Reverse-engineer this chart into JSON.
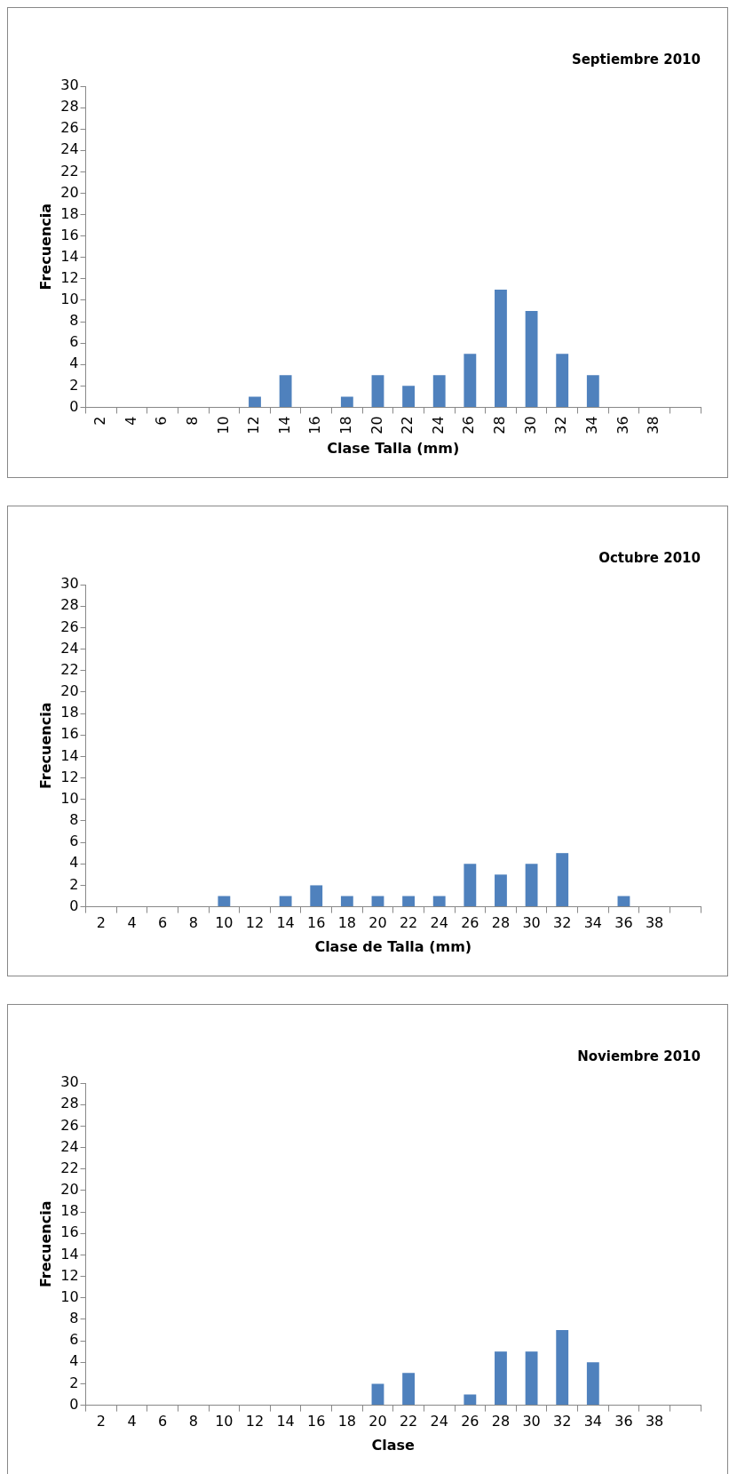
{
  "chart_data": [
    {
      "type": "bar",
      "title": "Septiembre 2010",
      "xlabel": "Clase Talla (mm)",
      "ylabel": "Frecuencia",
      "categories": [
        "2",
        "4",
        "6",
        "8",
        "10",
        "12",
        "14",
        "16",
        "18",
        "20",
        "22",
        "24",
        "26",
        "28",
        "30",
        "32",
        "34",
        "36",
        "38",
        null
      ],
      "values": [
        0,
        0,
        0,
        0,
        0,
        1,
        3,
        0,
        1,
        3,
        2,
        3,
        5,
        11,
        9,
        5,
        3,
        0,
        0,
        null
      ],
      "color": "#4f81bd",
      "ylim": [
        0,
        30
      ],
      "yticks": [
        0,
        2,
        4,
        6,
        8,
        10,
        12,
        14,
        16,
        18,
        20,
        22,
        24,
        26,
        28,
        30
      ],
      "grid": false,
      "legend": false
    },
    {
      "type": "bar",
      "title": "Octubre 2010",
      "xlabel": "Clase de Talla (mm)",
      "ylabel": "Frecuencia",
      "categories": [
        "2",
        "4",
        "6",
        "8",
        "10",
        "12",
        "14",
        "16",
        "18",
        "20",
        "22",
        "24",
        "26",
        "28",
        "30",
        "32",
        "34",
        "36",
        "38",
        null
      ],
      "values": [
        0,
        0,
        0,
        0,
        1,
        0,
        1,
        2,
        1,
        1,
        1,
        1,
        4,
        3,
        4,
        5,
        0,
        1,
        0,
        null
      ],
      "color": "#4f81bd",
      "ylim": [
        0,
        30
      ],
      "yticks": [
        0,
        2,
        4,
        6,
        8,
        10,
        12,
        14,
        16,
        18,
        20,
        22,
        24,
        26,
        28,
        30
      ],
      "grid": false,
      "legend": false
    },
    {
      "type": "bar",
      "title": "Noviembre 2010",
      "xlabel": "Clase",
      "ylabel": "Frecuencia",
      "categories": [
        "2",
        "4",
        "6",
        "8",
        "10",
        "12",
        "14",
        "16",
        "18",
        "20",
        "22",
        "24",
        "26",
        "28",
        "30",
        "32",
        "34",
        "36",
        "38",
        null
      ],
      "values": [
        0,
        0,
        0,
        0,
        0,
        0,
        0,
        0,
        0,
        2,
        3,
        0,
        1,
        5,
        5,
        7,
        4,
        0,
        0,
        null
      ],
      "color": "#4f81bd",
      "ylim": [
        0,
        30
      ],
      "yticks": [
        0,
        2,
        4,
        6,
        8,
        10,
        12,
        14,
        16,
        18,
        20,
        22,
        24,
        26,
        28,
        30
      ],
      "grid": false,
      "legend": false
    }
  ]
}
